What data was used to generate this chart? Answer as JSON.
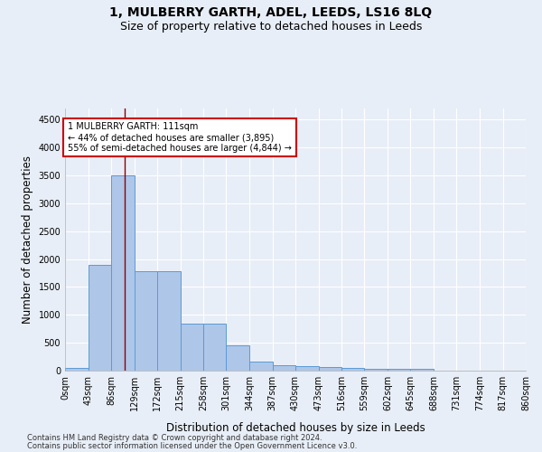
{
  "title": "1, MULBERRY GARTH, ADEL, LEEDS, LS16 8LQ",
  "subtitle": "Size of property relative to detached houses in Leeds",
  "xlabel": "Distribution of detached houses by size in Leeds",
  "ylabel": "Number of detached properties",
  "bar_values": [
    50,
    1900,
    3500,
    1775,
    1775,
    850,
    850,
    460,
    160,
    100,
    75,
    60,
    50,
    40,
    30,
    25,
    0,
    0,
    0,
    0
  ],
  "bin_edges": [
    0,
    43,
    86,
    129,
    172,
    215,
    258,
    301,
    344,
    387,
    430,
    473,
    516,
    559,
    602,
    645,
    688,
    731,
    774,
    817,
    860
  ],
  "tick_labels": [
    "0sqm",
    "43sqm",
    "86sqm",
    "129sqm",
    "172sqm",
    "215sqm",
    "258sqm",
    "301sqm",
    "344sqm",
    "387sqm",
    "430sqm",
    "473sqm",
    "516sqm",
    "559sqm",
    "602sqm",
    "645sqm",
    "688sqm",
    "731sqm",
    "774sqm",
    "817sqm",
    "860sqm"
  ],
  "bar_color": "#aec6e8",
  "bar_edge_color": "#5b9bd5",
  "vline_x": 111,
  "vline_color": "#8b0000",
  "annotation_text": "1 MULBERRY GARTH: 111sqm\n← 44% of detached houses are smaller (3,895)\n55% of semi-detached houses are larger (4,844) →",
  "annotation_box_color": "#ffffff",
  "annotation_box_edge": "#cc0000",
  "ylim": [
    0,
    4700
  ],
  "yticks": [
    0,
    500,
    1000,
    1500,
    2000,
    2500,
    3000,
    3500,
    4000,
    4500
  ],
  "footer_line1": "Contains HM Land Registry data © Crown copyright and database right 2024.",
  "footer_line2": "Contains public sector information licensed under the Open Government Licence v3.0.",
  "bg_color": "#e8eef7",
  "grid_color": "#ffffff",
  "title_fontsize": 10,
  "subtitle_fontsize": 9,
  "axis_fontsize": 8.5,
  "tick_fontsize": 7,
  "footer_fontsize": 6
}
